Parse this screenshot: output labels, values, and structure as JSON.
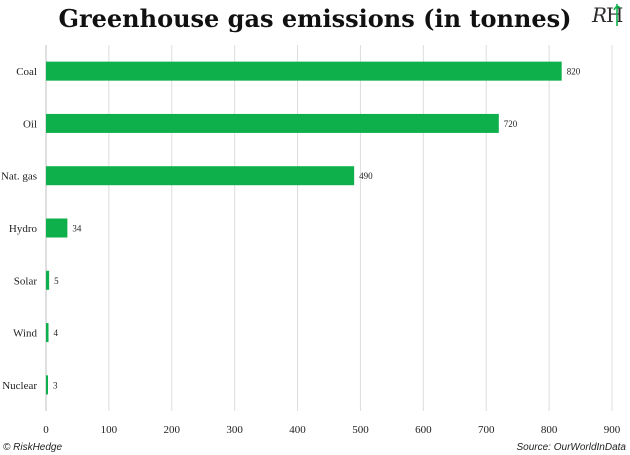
{
  "chart_data": {
    "type": "bar",
    "orientation": "horizontal",
    "title": "Greenhouse gas emissions (in tonnes)",
    "categories": [
      "Coal",
      "Oil",
      "Nat. gas",
      "Hydro",
      "Solar",
      "Wind",
      "Nuclear"
    ],
    "values": [
      820,
      720,
      490,
      34,
      5,
      4,
      3
    ],
    "xlim": [
      0,
      900
    ],
    "xticks": [
      0,
      100,
      200,
      300,
      400,
      500,
      600,
      700,
      800,
      900
    ],
    "grid": "vertical",
    "bar_color": "#0db04b",
    "data_labels": true
  },
  "footer": {
    "copyright": "© RiskHedge",
    "source": "Source: OurWorldInData"
  },
  "logo": {
    "text": "RH",
    "icon": "riskhedge-logo-icon"
  }
}
